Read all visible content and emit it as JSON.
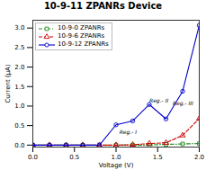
{
  "chart_data": {
    "type": "line",
    "title": "10-9-11 ZPANRs Device",
    "xlabel": "Voltage (V)",
    "ylabel": "Current (μA)",
    "xlim": [
      0.0,
      2.0
    ],
    "ylim": [
      -0.05,
      3.2
    ],
    "xticks": [
      {
        "value": 0.0,
        "label": "0.0"
      },
      {
        "value": 0.5,
        "label": "0.5"
      },
      {
        "value": 1.0,
        "label": "1.0"
      },
      {
        "value": 1.5,
        "label": "1.5"
      },
      {
        "value": 2.0,
        "label": "2.0"
      }
    ],
    "yticks": [
      {
        "value": 0.0,
        "label": "0.0"
      },
      {
        "value": 0.5,
        "label": "0.5"
      },
      {
        "value": 1.0,
        "label": "1.0"
      },
      {
        "value": 1.5,
        "label": "1.5"
      },
      {
        "value": 2.0,
        "label": "2.0"
      },
      {
        "value": 2.5,
        "label": "2.5"
      },
      {
        "value": 3.0,
        "label": "3.0"
      }
    ],
    "x": [
      0.0,
      0.2,
      0.4,
      0.6,
      0.8,
      1.0,
      1.2,
      1.4,
      1.6,
      1.8,
      2.0
    ],
    "series": [
      {
        "name": "10-9-0 ZPANRs",
        "color": "#228B22",
        "marker": "square",
        "line_style": "dashdot",
        "values": [
          0.0,
          0.0,
          0.0,
          0.0,
          0.0,
          0.0,
          0.0,
          0.0,
          0.02,
          0.03,
          0.04
        ]
      },
      {
        "name": "10-9-6 ZPANRs",
        "color": "#cc0000",
        "marker": "triangle",
        "line_style": "dashed",
        "values": [
          0.0,
          0.0,
          0.0,
          0.0,
          0.0,
          0.0,
          0.01,
          0.04,
          0.06,
          0.25,
          0.68
        ]
      },
      {
        "name": "10-9-12 ZPANRs",
        "color": "#0000cc",
        "marker": "circle",
        "line_style": "solid",
        "values": [
          0.0,
          0.0,
          0.0,
          0.0,
          0.0,
          0.52,
          0.62,
          1.04,
          0.67,
          1.38,
          3.07
        ]
      }
    ],
    "annotations": [
      {
        "text": "Reg.- I",
        "x": 1.04,
        "y": 0.28
      },
      {
        "text": "Reg.- II",
        "x": 1.4,
        "y": 1.1
      },
      {
        "text": "Reg.- III",
        "x": 1.68,
        "y": 1.02
      }
    ],
    "legend": "upper left",
    "grid": false
  }
}
